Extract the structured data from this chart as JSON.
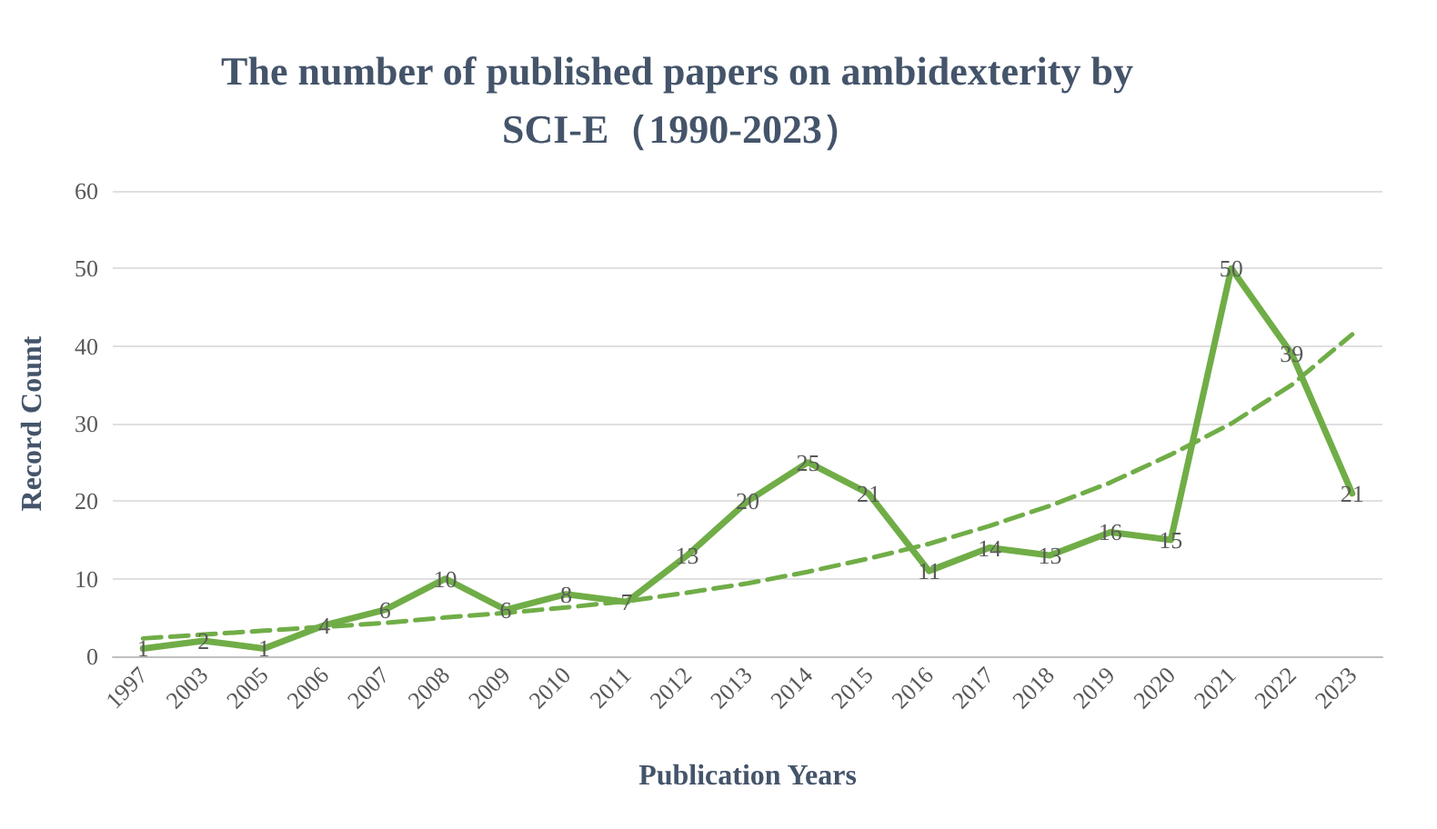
{
  "chart_data": {
    "type": "line",
    "title": "The number of published papers on ambidexterity by SCI-E（1990-2023）",
    "xlabel": "Publication Years",
    "ylabel": "Record Count",
    "categories": [
      "1997",
      "2003",
      "2005",
      "2006",
      "2007",
      "2008",
      "2009",
      "2010",
      "2011",
      "2012",
      "2013",
      "2014",
      "2015",
      "2016",
      "2017",
      "2018",
      "2019",
      "2020",
      "2021",
      "2022",
      "2023"
    ],
    "series": [
      {
        "color": "#70ad47",
        "values": [
          1,
          2,
          1,
          4,
          6,
          10,
          6,
          8,
          7,
          13,
          20,
          25,
          21,
          11,
          14,
          13,
          16,
          15,
          50,
          39,
          21
        ],
        "value_labels": [
          "1",
          "2",
          "1",
          "4",
          "6",
          "10",
          "6",
          "8",
          "7",
          "13",
          "20",
          "25",
          "21",
          "11",
          "14",
          "13",
          "16",
          "15",
          "50",
          "39",
          "21"
        ],
        "line_style": "solid"
      },
      {
        "color": "#70ad47",
        "line_style": "dashed",
        "values": [
          2.3,
          2.8,
          3.3,
          3.8,
          4.3,
          5,
          5.6,
          6.3,
          7.1,
          8.2,
          9.4,
          10.9,
          12.6,
          14.5,
          16.8,
          19.4,
          22.4,
          26,
          30,
          35,
          41.5
        ]
      }
    ],
    "ylim": [
      0,
      60
    ],
    "yticks": [
      0,
      10,
      20,
      30,
      40,
      50,
      60
    ],
    "grid": "y",
    "marker": "none"
  }
}
